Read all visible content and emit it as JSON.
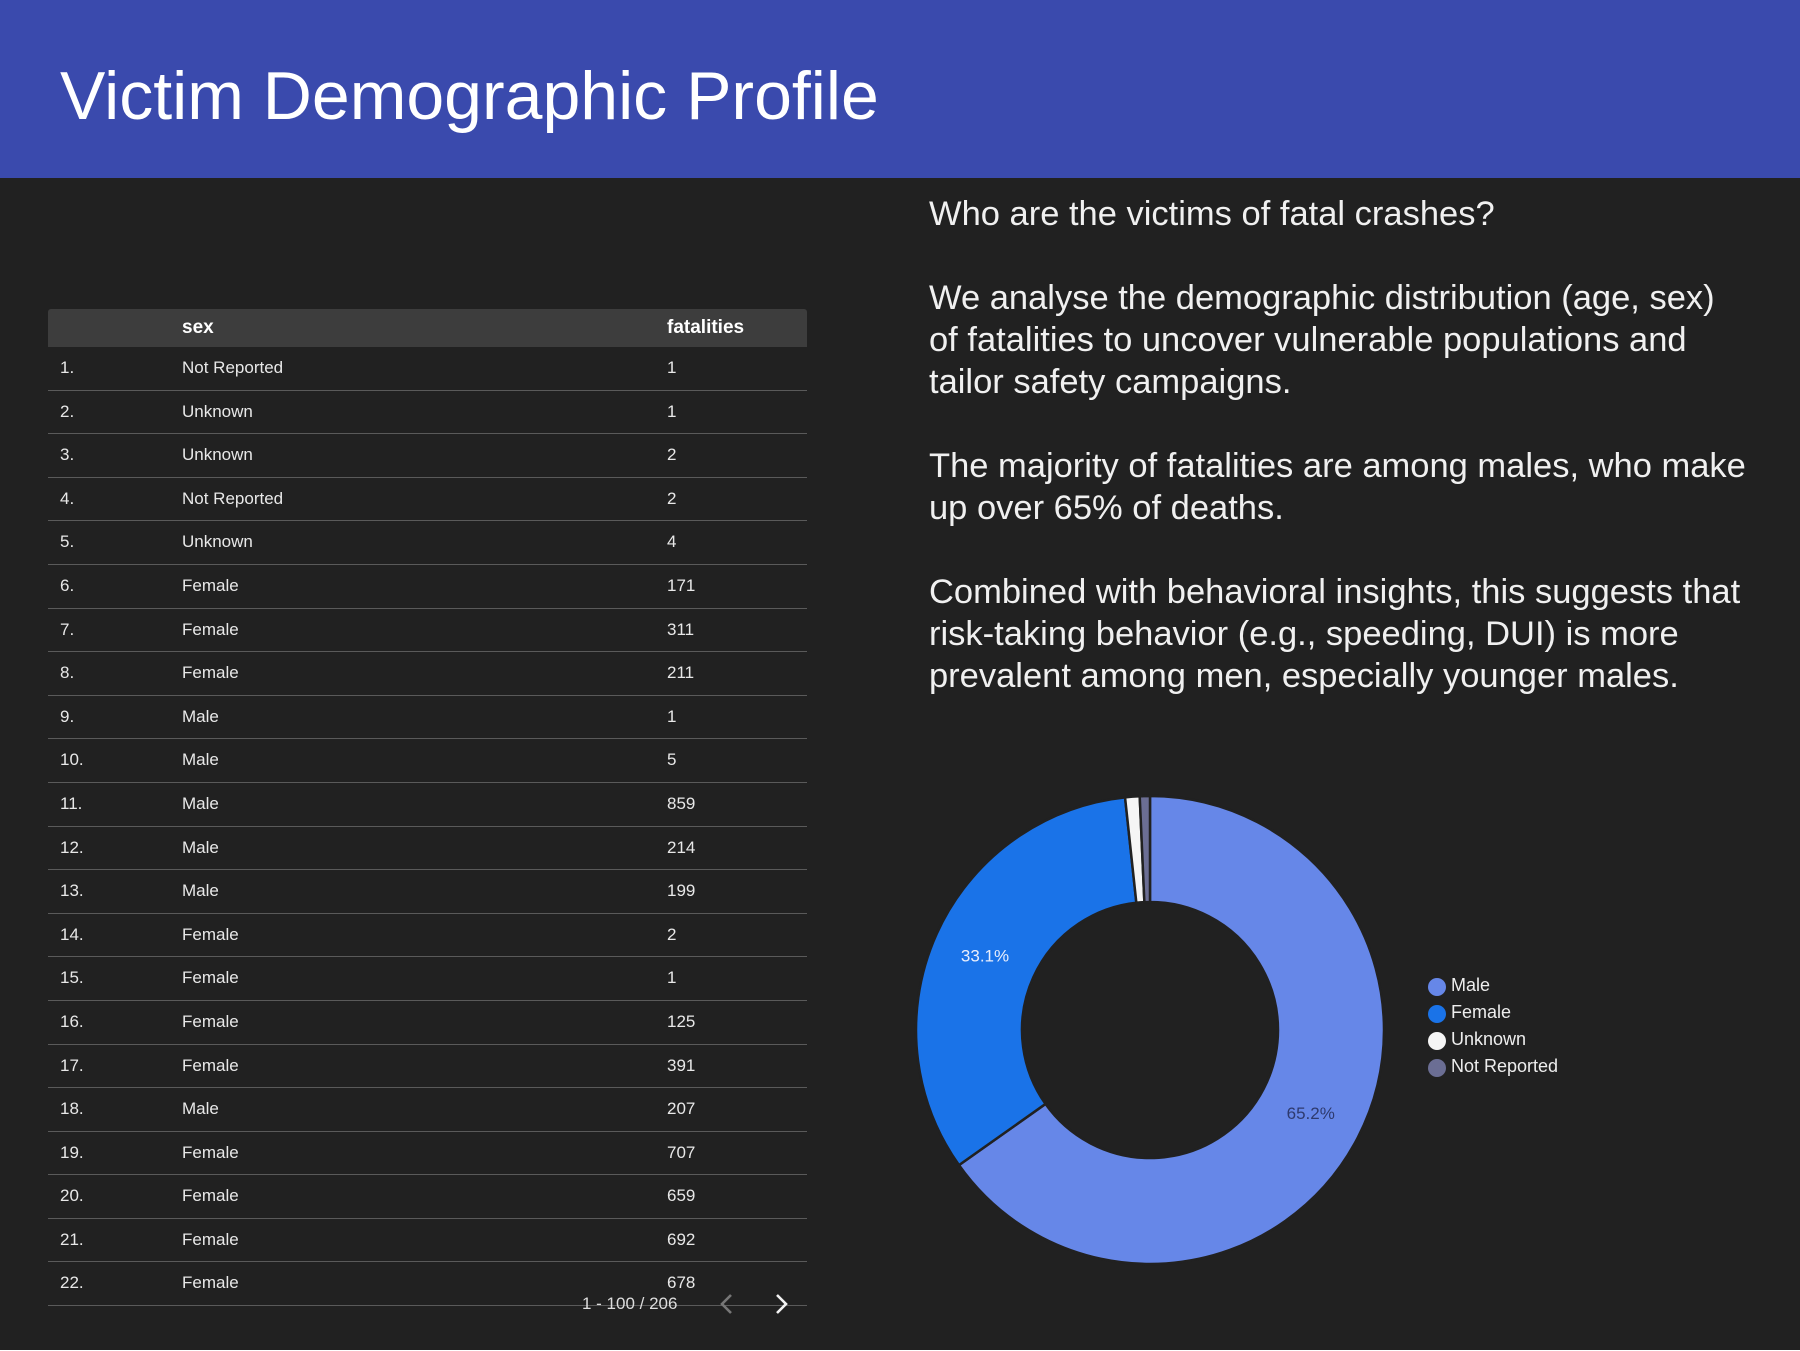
{
  "header": {
    "title": "Victim Demographic Profile",
    "color": "#3a4aad"
  },
  "table": {
    "columns": {
      "sex": "sex",
      "fatalities": "fatalities"
    },
    "rows": [
      {
        "idx": "1.",
        "sex": "Not Reported",
        "fatalities": "1"
      },
      {
        "idx": "2.",
        "sex": "Unknown",
        "fatalities": "1"
      },
      {
        "idx": "3.",
        "sex": "Unknown",
        "fatalities": "2"
      },
      {
        "idx": "4.",
        "sex": "Not Reported",
        "fatalities": "2"
      },
      {
        "idx": "5.",
        "sex": "Unknown",
        "fatalities": "4"
      },
      {
        "idx": "6.",
        "sex": "Female",
        "fatalities": "171"
      },
      {
        "idx": "7.",
        "sex": "Female",
        "fatalities": "311"
      },
      {
        "idx": "8.",
        "sex": "Female",
        "fatalities": "211"
      },
      {
        "idx": "9.",
        "sex": "Male",
        "fatalities": "1"
      },
      {
        "idx": "10.",
        "sex": "Male",
        "fatalities": "5"
      },
      {
        "idx": "11.",
        "sex": "Male",
        "fatalities": "859"
      },
      {
        "idx": "12.",
        "sex": "Male",
        "fatalities": "214"
      },
      {
        "idx": "13.",
        "sex": "Male",
        "fatalities": "199"
      },
      {
        "idx": "14.",
        "sex": "Female",
        "fatalities": "2"
      },
      {
        "idx": "15.",
        "sex": "Female",
        "fatalities": "1"
      },
      {
        "idx": "16.",
        "sex": "Female",
        "fatalities": "125"
      },
      {
        "idx": "17.",
        "sex": "Female",
        "fatalities": "391"
      },
      {
        "idx": "18.",
        "sex": "Male",
        "fatalities": "207"
      },
      {
        "idx": "19.",
        "sex": "Female",
        "fatalities": "707"
      },
      {
        "idx": "20.",
        "sex": "Female",
        "fatalities": "659"
      },
      {
        "idx": "21.",
        "sex": "Female",
        "fatalities": "692"
      },
      {
        "idx": "22.",
        "sex": "Female",
        "fatalities": "678"
      }
    ],
    "pagination": {
      "range": "1 - 100 / 206",
      "prev_icon": "chevron-left-icon",
      "next_icon": "chevron-right-icon"
    }
  },
  "narrative": {
    "question": "Who are the victims of fatal crashes?",
    "paragraph_1": "We analyse the demographic distribution (age, sex) of fatalities to uncover vulnerable populations and tailor safety campaigns.",
    "paragraph_2": "The majority of fatalities are among males, who make up over 65% of deaths.",
    "paragraph_3": "Combined with behavioral insights, this suggests that risk-taking behavior (e.g., speeding, DUI) is more prevalent among men, especially younger males."
  },
  "chart_data": {
    "type": "pie",
    "donut": true,
    "legend_position": "right",
    "series": [
      {
        "name": "Male",
        "value": 65.2,
        "color": "#6687e8",
        "label": "65.2%"
      },
      {
        "name": "Female",
        "value": 33.1,
        "color": "#1a73e8",
        "label": "33.1%"
      },
      {
        "name": "Unknown",
        "value": 1.0,
        "color": "#f5f5f5",
        "label": ""
      },
      {
        "name": "Not Reported",
        "value": 0.7,
        "color": "#6b6e94",
        "label": ""
      }
    ]
  }
}
